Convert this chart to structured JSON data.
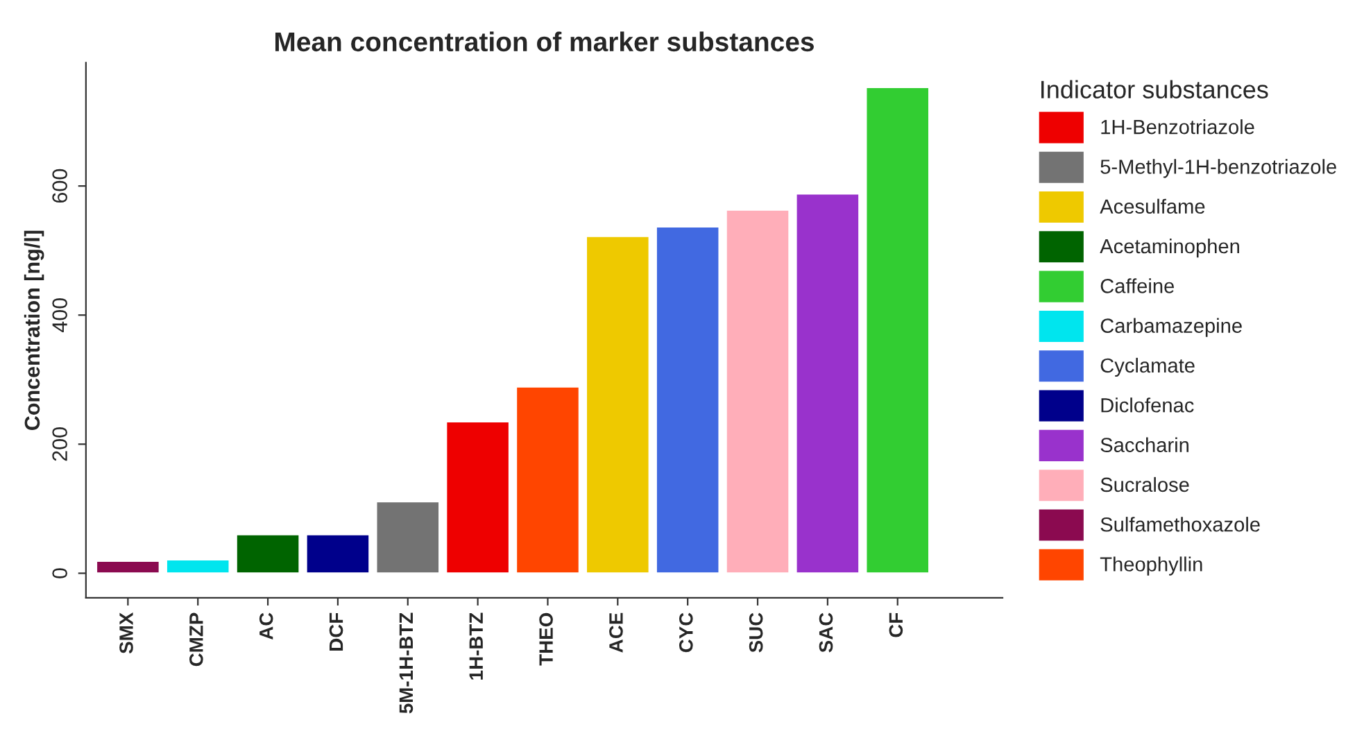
{
  "chart_data": {
    "type": "bar",
    "title": "Mean concentration of marker substances",
    "ylabel": "Concentration [ng/l]",
    "legend_title": "Indicator substances",
    "categories": [
      "SMX",
      "CMZP",
      "AC",
      "DCF",
      "5M-1H-BTZ",
      "1H-BTZ",
      "THEO",
      "ACE",
      "CYC",
      "SUC",
      "SAC",
      "CF"
    ],
    "series": [
      {
        "name": "1H-Benzotriazole",
        "color": "#ee0000",
        "values": [
          null,
          null,
          null,
          null,
          null,
          235,
          null,
          null,
          null,
          null,
          null,
          null
        ]
      },
      {
        "name": "5-Methyl-1H-benzotriazole",
        "color": "#737373",
        "values": [
          null,
          null,
          null,
          null,
          111,
          null,
          null,
          null,
          null,
          null,
          null,
          null
        ]
      },
      {
        "name": "Acesulfame",
        "color": "#eec900",
        "values": [
          null,
          null,
          null,
          null,
          null,
          null,
          null,
          522,
          null,
          null,
          null,
          null
        ]
      },
      {
        "name": "Acetaminophen",
        "color": "#006400",
        "values": [
          null,
          null,
          60,
          null,
          null,
          null,
          null,
          null,
          null,
          null,
          null,
          null
        ]
      },
      {
        "name": "Caffeine",
        "color": "#32cd32",
        "values": [
          null,
          null,
          null,
          null,
          null,
          null,
          null,
          null,
          null,
          null,
          null,
          753
        ]
      },
      {
        "name": "Carbamazepine",
        "color": "#00e5ee",
        "values": [
          null,
          21,
          null,
          null,
          null,
          null,
          null,
          null,
          null,
          null,
          null,
          null
        ]
      },
      {
        "name": "Cyclamate",
        "color": "#4169e1",
        "values": [
          null,
          null,
          null,
          null,
          null,
          null,
          null,
          null,
          537,
          null,
          null,
          null
        ]
      },
      {
        "name": "Diclofenac",
        "color": "#00008b",
        "values": [
          null,
          null,
          null,
          60,
          null,
          null,
          null,
          null,
          null,
          null,
          null,
          null
        ]
      },
      {
        "name": "Saccharin",
        "color": "#9932cc",
        "values": [
          null,
          null,
          null,
          null,
          null,
          null,
          null,
          null,
          null,
          null,
          588,
          null
        ]
      },
      {
        "name": "Sucralose",
        "color": "#ffaeb9",
        "values": [
          null,
          null,
          null,
          null,
          null,
          null,
          null,
          null,
          null,
          563,
          null,
          null
        ]
      },
      {
        "name": "Sulfamethoxazole",
        "color": "#8b0a50",
        "values": [
          19,
          null,
          null,
          null,
          null,
          null,
          null,
          null,
          null,
          null,
          null,
          null
        ]
      },
      {
        "name": "Theophyllin",
        "color": "#ff4500",
        "values": [
          null,
          null,
          null,
          null,
          null,
          null,
          289,
          null,
          null,
          null,
          null,
          null
        ]
      }
    ],
    "ylim": [
      -38,
      791
    ],
    "yticks": [
      0,
      200,
      400,
      600
    ],
    "grid": false,
    "legend": "right"
  }
}
